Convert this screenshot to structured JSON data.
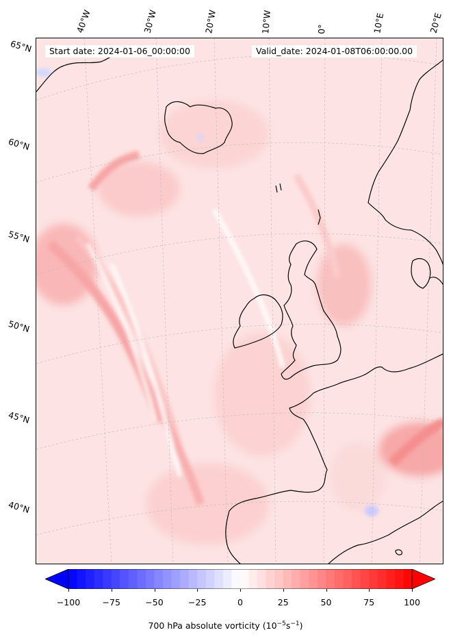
{
  "header": {
    "start_date": "Start date: 2024-01-06_00:00:00",
    "valid_date": "Valid_date: 2024-01-08T06:00:00.00"
  },
  "longitude_labels": [
    "40°W",
    "30°W",
    "20°W",
    "10°W",
    "0°",
    "10°E",
    "20°E"
  ],
  "latitude_labels": [
    "65°N",
    "60°N",
    "55°N",
    "50°N",
    "45°N",
    "40°N"
  ],
  "colorbar": {
    "label_main": "700 hPa absolute vorticity (10",
    "label_exp1": "−5",
    "label_mid": "s",
    "label_exp2": "−1",
    "label_end": ")",
    "ticks": [
      "−100",
      "−75",
      "−50",
      "−25",
      "0",
      "25",
      "50",
      "75",
      "100"
    ],
    "tick_values": [
      -100,
      -75,
      -50,
      -25,
      0,
      25,
      50,
      75,
      100
    ],
    "min": -100,
    "max": 100,
    "low_color": "#0000ff",
    "mid_color": "#ffffff",
    "high_color": "#ff0000"
  },
  "colors": {
    "coastline": "#000000",
    "background_field": "#fde8e8",
    "grid": "#bbbbbb"
  }
}
